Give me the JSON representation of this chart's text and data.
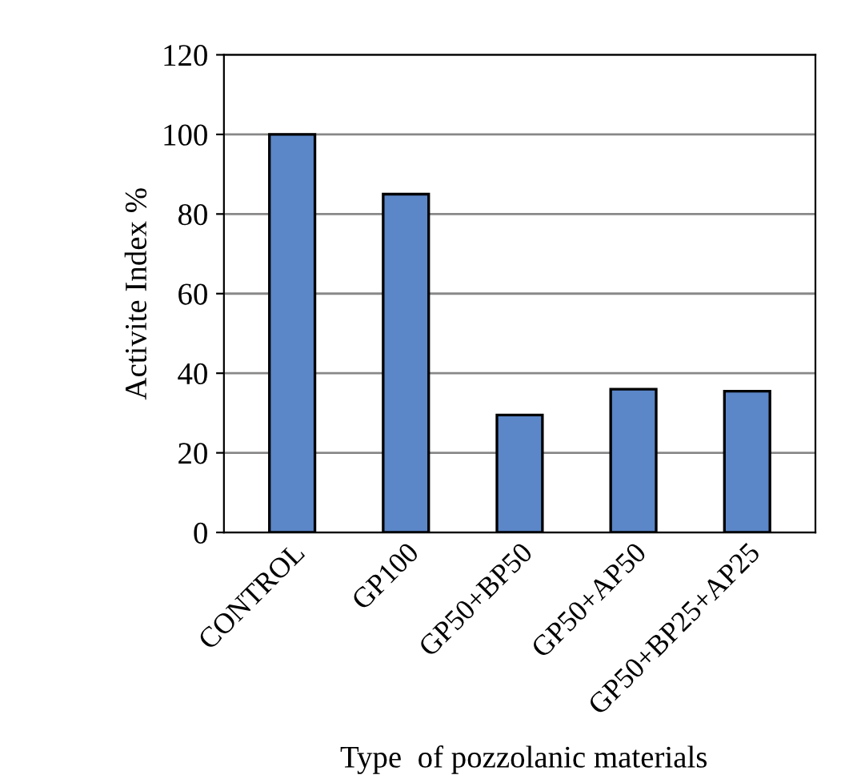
{
  "chart_data": {
    "type": "bar",
    "xlabel": "Type  of pozzolanic materials",
    "ylabel": "Activite Index %",
    "categories": [
      "CONTROL",
      "GP100",
      "GP50+BP50",
      "GP50+AP50",
      "GP50+BP25+AP25"
    ],
    "values": [
      100,
      85,
      29.5,
      36,
      35.5
    ],
    "color": "#5b86c8",
    "ylim": [
      0,
      120
    ],
    "yticks": [
      0,
      20,
      40,
      60,
      80,
      100,
      120
    ],
    "grid": "y"
  }
}
